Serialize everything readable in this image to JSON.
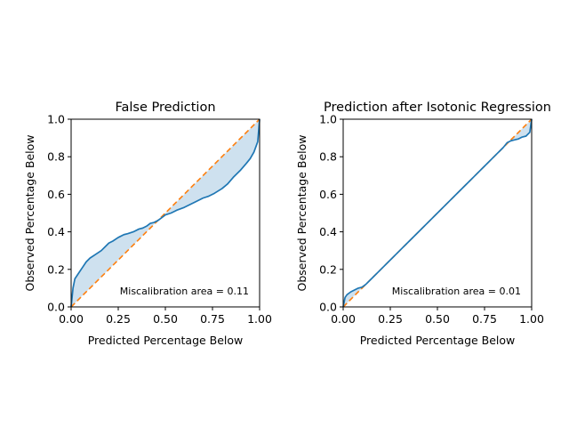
{
  "chart_data": [
    {
      "type": "line",
      "title": "False Prediction",
      "xlabel": "Predicted Percentage Below",
      "ylabel": "Observed Percentage Below",
      "xlim": [
        0,
        1
      ],
      "ylim": [
        0,
        1
      ],
      "xticks": [
        "0.00",
        "0.25",
        "0.50",
        "0.75",
        "1.00"
      ],
      "yticks": [
        "0.0",
        "0.2",
        "0.4",
        "0.6",
        "0.8",
        "1.0"
      ],
      "annotation": "Miscalibration area = 0.11",
      "grid": false,
      "fill_between": true,
      "colors": {
        "observed": "#1f77b4",
        "ideal": "#ff7f0e",
        "fill": "#c6dcec"
      },
      "series": [
        {
          "x": [
            0.0,
            0.01,
            0.02,
            0.04,
            0.06,
            0.08,
            0.1,
            0.13,
            0.16,
            0.18,
            0.2,
            0.22,
            0.25,
            0.28,
            0.3,
            0.33,
            0.36,
            0.38,
            0.4,
            0.42,
            0.44,
            0.46,
            0.48,
            0.5,
            0.53,
            0.56,
            0.6,
            0.63,
            0.66,
            0.7,
            0.73,
            0.76,
            0.8,
            0.83,
            0.86,
            0.9,
            0.93,
            0.95,
            0.97,
            0.99,
            1.0
          ],
          "y": [
            0.0,
            0.1,
            0.15,
            0.18,
            0.21,
            0.24,
            0.26,
            0.28,
            0.3,
            0.32,
            0.34,
            0.35,
            0.37,
            0.385,
            0.39,
            0.4,
            0.415,
            0.42,
            0.43,
            0.445,
            0.45,
            0.46,
            0.475,
            0.49,
            0.5,
            0.515,
            0.53,
            0.545,
            0.56,
            0.58,
            0.59,
            0.605,
            0.63,
            0.655,
            0.69,
            0.73,
            0.765,
            0.79,
            0.825,
            0.88,
            1.0
          ]
        }
      ]
    },
    {
      "type": "line",
      "title": "Prediction after Isotonic Regression",
      "xlabel": "Predicted Percentage Below",
      "ylabel": "Observed Percentage Below",
      "xlim": [
        0,
        1
      ],
      "ylim": [
        0,
        1
      ],
      "xticks": [
        "0.00",
        "0.25",
        "0.50",
        "0.75",
        "1.00"
      ],
      "yticks": [
        "0.0",
        "0.2",
        "0.4",
        "0.6",
        "0.8",
        "1.0"
      ],
      "annotation": "Miscalibration area = 0.01",
      "grid": false,
      "fill_between": true,
      "colors": {
        "observed": "#1f77b4",
        "ideal": "#ff7f0e",
        "fill": "#c6dcec"
      },
      "series": [
        {
          "x": [
            0.0,
            0.01,
            0.02,
            0.04,
            0.06,
            0.08,
            0.1,
            0.12,
            0.15,
            0.2,
            0.25,
            0.3,
            0.35,
            0.4,
            0.45,
            0.5,
            0.55,
            0.6,
            0.65,
            0.7,
            0.75,
            0.8,
            0.85,
            0.87,
            0.89,
            0.91,
            0.93,
            0.95,
            0.97,
            0.99,
            1.0
          ],
          "y": [
            0.0,
            0.05,
            0.065,
            0.08,
            0.09,
            0.1,
            0.105,
            0.12,
            0.15,
            0.2,
            0.25,
            0.3,
            0.35,
            0.4,
            0.45,
            0.5,
            0.55,
            0.6,
            0.65,
            0.7,
            0.75,
            0.8,
            0.85,
            0.875,
            0.885,
            0.89,
            0.895,
            0.905,
            0.91,
            0.93,
            1.0
          ]
        }
      ]
    }
  ]
}
